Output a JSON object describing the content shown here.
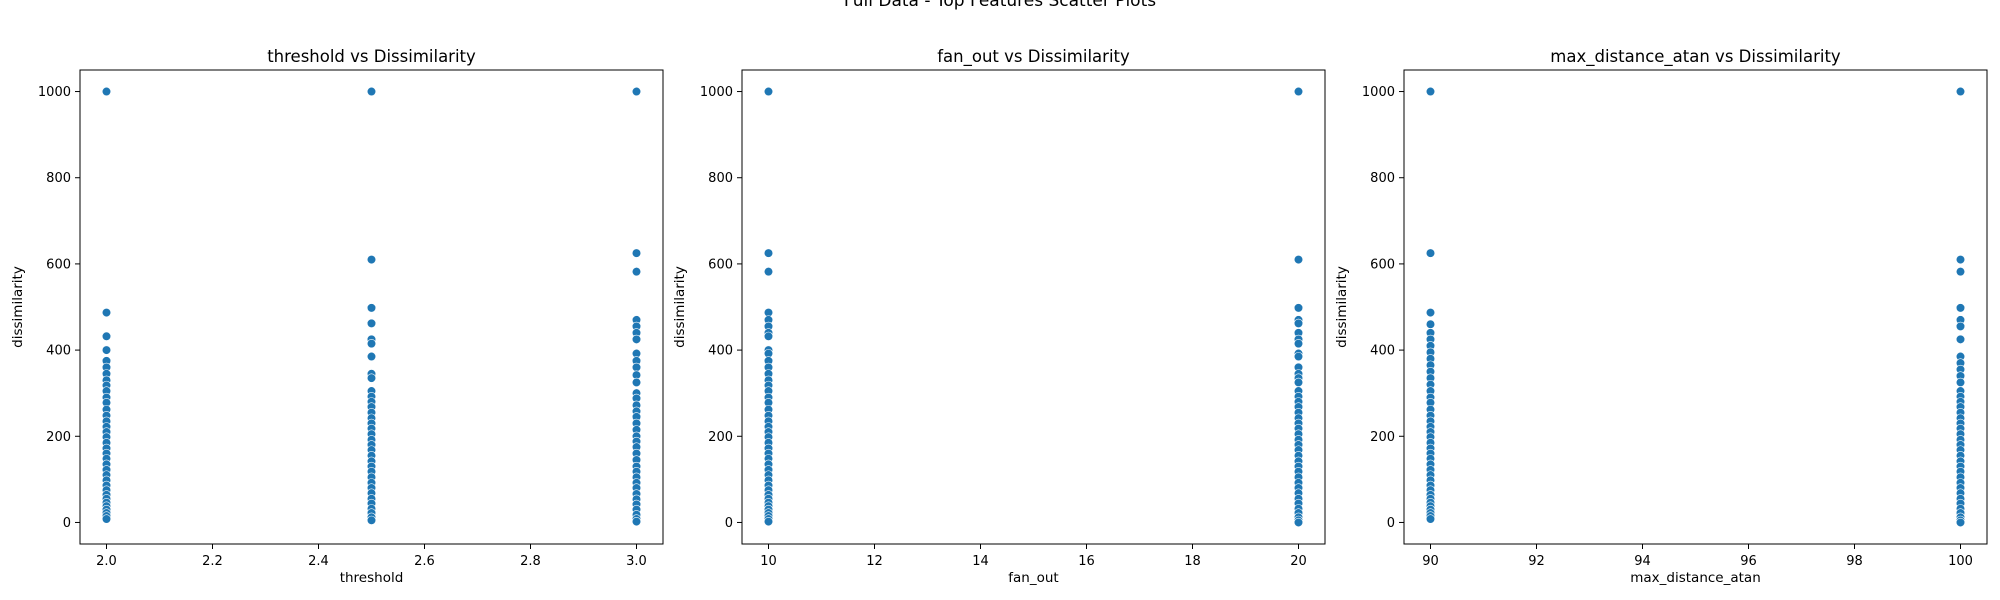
{
  "figure": {
    "suptitle": "Full Data - Top Features Scatter Plots"
  },
  "chart_data": [
    {
      "type": "scatter",
      "title": "threshold vs Dissimilarity",
      "xlabel": "threshold",
      "ylabel": "dissimilarity",
      "xlim": [
        1.95,
        3.05
      ],
      "ylim": [
        -50,
        1050
      ],
      "xticks": [
        2.0,
        2.2,
        2.4,
        2.6,
        2.8,
        3.0
      ],
      "xtick_labels": [
        "2.0",
        "2.2",
        "2.4",
        "2.6",
        "2.8",
        "3.0"
      ],
      "yticks": [
        0,
        200,
        400,
        600,
        800,
        1000
      ],
      "ytick_labels": [
        "0",
        "200",
        "400",
        "600",
        "800",
        "1000"
      ],
      "marker_color": "#1f77b4",
      "groups": [
        {
          "x": 2.0,
          "y": [
            1000,
            487,
            432,
            400,
            375,
            360,
            345,
            330,
            318,
            305,
            290,
            278,
            262,
            248,
            235,
            222,
            210,
            198,
            185,
            172,
            160,
            148,
            135,
            122,
            110,
            98,
            86,
            75,
            64,
            55,
            46,
            38,
            30,
            22,
            15,
            8
          ]
        },
        {
          "x": 2.5,
          "y": [
            1000,
            610,
            498,
            462,
            425,
            415,
            385,
            345,
            335,
            305,
            292,
            280,
            268,
            255,
            242,
            230,
            218,
            205,
            192,
            180,
            168,
            155,
            142,
            130,
            118,
            105,
            92,
            80,
            68,
            55,
            44,
            32,
            22,
            12,
            5
          ]
        },
        {
          "x": 3.0,
          "y": [
            1000,
            625,
            582,
            470,
            455,
            440,
            425,
            392,
            375,
            360,
            342,
            325,
            300,
            288,
            272,
            258,
            245,
            230,
            215,
            200,
            188,
            175,
            160,
            145,
            130,
            118,
            105,
            92,
            80,
            66,
            54,
            42,
            30,
            18,
            8,
            2
          ]
        }
      ]
    },
    {
      "type": "scatter",
      "title": "fan_out vs Dissimilarity",
      "xlabel": "fan_out",
      "ylabel": "dissimilarity",
      "xlim": [
        9.5,
        20.5
      ],
      "ylim": [
        -50,
        1050
      ],
      "xticks": [
        10,
        12,
        14,
        16,
        18,
        20
      ],
      "xtick_labels": [
        "10",
        "12",
        "14",
        "16",
        "18",
        "20"
      ],
      "yticks": [
        0,
        200,
        400,
        600,
        800,
        1000
      ],
      "ytick_labels": [
        "0",
        "200",
        "400",
        "600",
        "800",
        "1000"
      ],
      "marker_color": "#1f77b4",
      "groups": [
        {
          "x": 10,
          "y": [
            1000,
            625,
            582,
            487,
            470,
            455,
            440,
            432,
            400,
            392,
            375,
            360,
            345,
            330,
            318,
            305,
            290,
            278,
            262,
            248,
            235,
            222,
            210,
            198,
            185,
            172,
            160,
            148,
            135,
            122,
            110,
            98,
            86,
            75,
            64,
            55,
            46,
            38,
            30,
            22,
            15,
            8,
            2
          ]
        },
        {
          "x": 20,
          "y": [
            1000,
            610,
            498,
            470,
            462,
            440,
            425,
            415,
            392,
            385,
            360,
            345,
            335,
            325,
            305,
            292,
            280,
            268,
            255,
            242,
            230,
            218,
            205,
            192,
            180,
            168,
            155,
            142,
            130,
            118,
            105,
            92,
            80,
            68,
            55,
            44,
            32,
            22,
            12,
            5,
            0
          ]
        }
      ]
    },
    {
      "type": "scatter",
      "title": "max_distance_atan vs Dissimilarity",
      "xlabel": "max_distance_atan",
      "ylabel": "dissimilarity",
      "xlim": [
        89.5,
        100.5
      ],
      "ylim": [
        -50,
        1050
      ],
      "xticks": [
        90,
        92,
        94,
        96,
        98,
        100
      ],
      "xtick_labels": [
        "90",
        "92",
        "94",
        "96",
        "98",
        "100"
      ],
      "yticks": [
        0,
        200,
        400,
        600,
        800,
        1000
      ],
      "ytick_labels": [
        "0",
        "200",
        "400",
        "600",
        "800",
        "1000"
      ],
      "marker_color": "#1f77b4",
      "groups": [
        {
          "x": 90,
          "y": [
            1000,
            625,
            487,
            460,
            440,
            425,
            410,
            395,
            380,
            365,
            350,
            335,
            320,
            305,
            290,
            278,
            262,
            248,
            235,
            222,
            210,
            198,
            185,
            172,
            160,
            148,
            135,
            122,
            110,
            98,
            86,
            75,
            64,
            55,
            46,
            38,
            30,
            22,
            15,
            8
          ]
        },
        {
          "x": 100,
          "y": [
            1000,
            610,
            582,
            498,
            470,
            455,
            425,
            385,
            370,
            355,
            340,
            325,
            305,
            292,
            280,
            268,
            255,
            242,
            230,
            218,
            205,
            192,
            180,
            168,
            155,
            142,
            130,
            118,
            105,
            92,
            80,
            68,
            55,
            44,
            32,
            22,
            12,
            5,
            0
          ]
        }
      ]
    }
  ]
}
